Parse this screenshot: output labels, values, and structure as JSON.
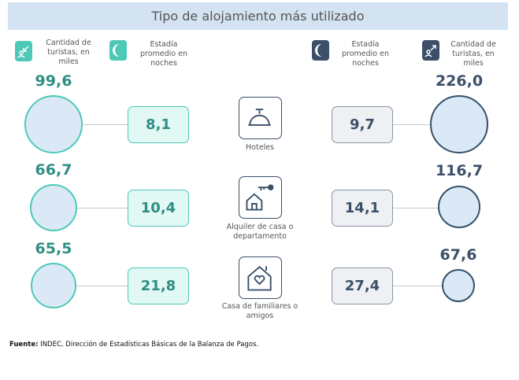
{
  "title": "Tipo de alojamiento más utilizado",
  "legend": {
    "left_tourists": "Cantidad de turistas, en miles",
    "left_nights": "Estadía promedio en noches",
    "right_nights": "Estadía promedio en noches",
    "right_tourists": "Cantidad de turistas, en miles"
  },
  "colors": {
    "inbound": "#4ec9b8",
    "outbound": "#3b5068",
    "circle_fill": "#dbe9f6",
    "title_bg": "#d3e3f2"
  },
  "rows": [
    {
      "label": "Hoteles",
      "icon": "service-bell-icon",
      "left_tourists": "99,6",
      "left_nights": "8,1",
      "right_nights": "9,7",
      "right_tourists": "226,0"
    },
    {
      "label": "Alquiler de casa o departamento",
      "icon": "house-key-icon",
      "left_tourists": "66,7",
      "left_nights": "10,4",
      "right_nights": "14,1",
      "right_tourists": "116,7"
    },
    {
      "label": "Casa de familiares o amigos",
      "icon": "house-heart-icon",
      "left_tourists": "65,5",
      "left_nights": "21,8",
      "right_nights": "27,4",
      "right_tourists": "67,6"
    }
  ],
  "footnote": {
    "bold": "Fuente:",
    "text": " INDEC, Dirección de Estadísticas Básicas de la Balanza de Pagos."
  }
}
